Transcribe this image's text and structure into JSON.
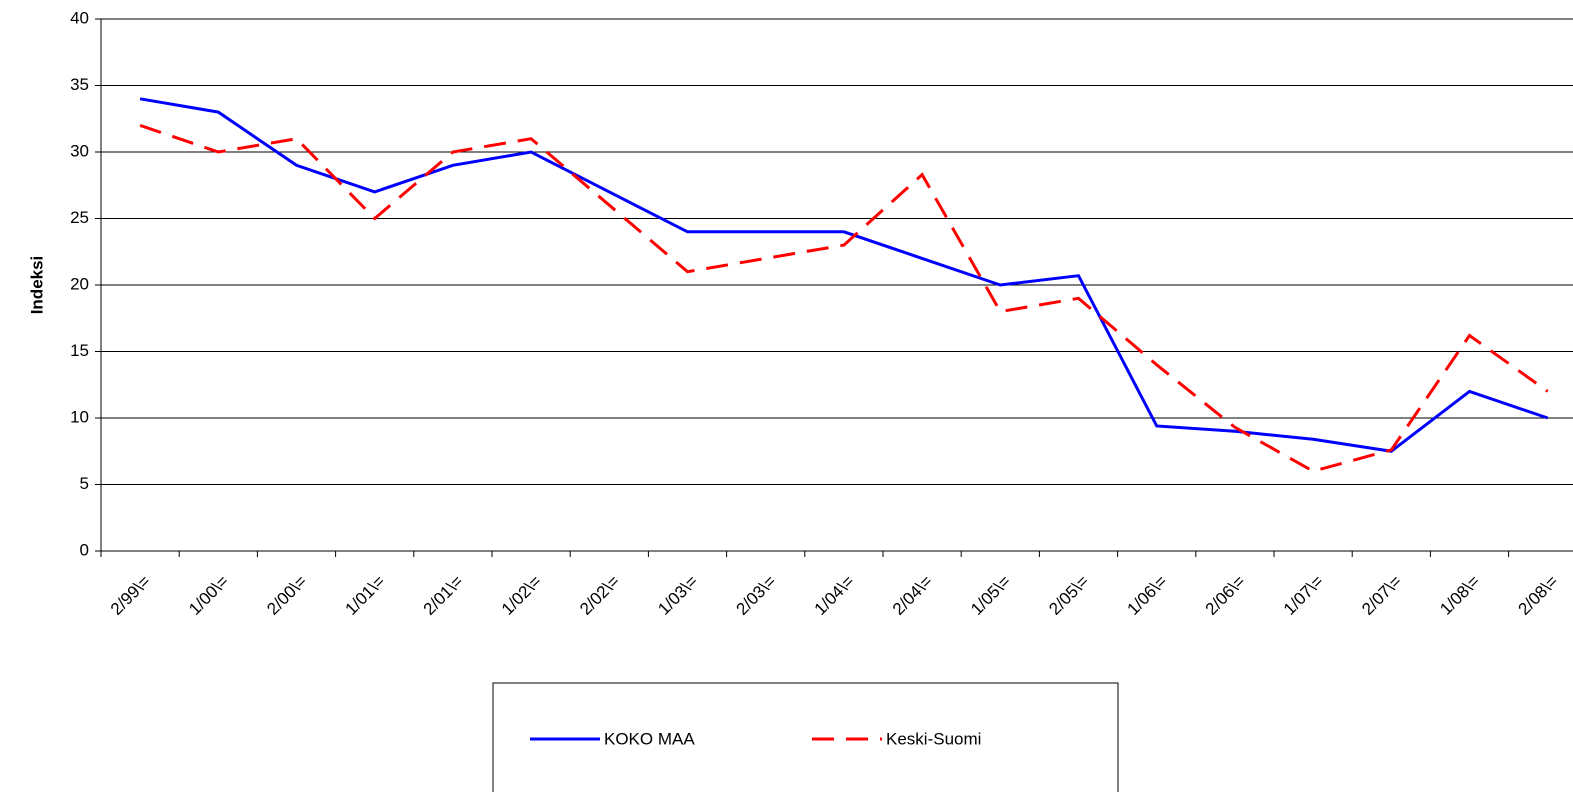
{
  "chart_data": {
    "type": "line",
    "y_label": "Indeksi",
    "categories": [
      "2/99\\=",
      "1/00\\=",
      "2/00\\=",
      "1/01\\=",
      "2/01\\=",
      "1/02\\=",
      "2/02\\=",
      "1/03\\=",
      "2/03\\=",
      "1/04\\=",
      "2/04\\=",
      "1/05\\=",
      "2/05\\=",
      "1/06\\=",
      "2/06\\=",
      "1/07\\=",
      "2/07\\=",
      "1/08\\=",
      "2/08\\="
    ],
    "series": [
      {
        "name": "KOKO MAA",
        "color": "#0000ff",
        "dashed": false,
        "values": [
          34,
          33,
          29,
          27,
          29,
          30,
          27,
          24,
          24,
          24,
          22,
          20,
          20.7,
          9.4,
          9,
          8.4,
          7.5,
          12,
          10
        ]
      },
      {
        "name": "Keski-Suomi",
        "color": "#ff0000",
        "dashed": true,
        "values": [
          32,
          30,
          31,
          25,
          30,
          31,
          26,
          21,
          22,
          23,
          28.3,
          18,
          19,
          14,
          9.3,
          6,
          7.6,
          16.2,
          12
        ]
      }
    ],
    "ylim": [
      0,
      40
    ],
    "yticks": [
      0,
      5,
      10,
      15,
      20,
      25,
      30,
      35,
      40
    ],
    "grid": true,
    "legend": "bottom"
  }
}
